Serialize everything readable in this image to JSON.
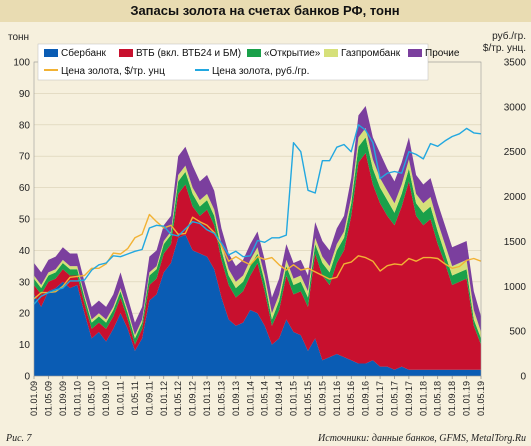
{
  "title": "Запасы золота на счетах банков РФ, тонн",
  "figure_label": "Рис. 7",
  "source": "Источники: данные банков, GFMS, MetalTorg.Ru",
  "colors": {
    "sber": "#0a5cb4",
    "vtb": "#c8102e",
    "otkr": "#1aa04a",
    "gazprom": "#d6e07a",
    "other": "#7b3f9e",
    "usd_line": "#f2b234",
    "rub_line": "#22a8e0",
    "header_band": "#e9dcb2",
    "background": "#f6f0dd"
  },
  "chart_data": {
    "type": "area",
    "title": "Запасы золота на счетах банков РФ, тонн",
    "y_left_label": "тонн",
    "y_right_label_line1": "руб./гр.",
    "y_right_label_line2": "$/тр. унц.",
    "ylim_left": [
      0,
      100
    ],
    "ylim_right": [
      0,
      3500
    ],
    "y_left_ticks": [
      0,
      10,
      20,
      30,
      40,
      50,
      60,
      70,
      80,
      90,
      100
    ],
    "y_right_ticks": [
      0,
      500,
      1000,
      1500,
      2000,
      2500,
      3000,
      3500
    ],
    "x_tick_labels": [
      "01.01.09",
      "01.05.09",
      "01.09.09",
      "01.01.10",
      "01.05.10",
      "01.09.10",
      "01.01.11",
      "01.05.11",
      "01.09.11",
      "01.01.12",
      "01.05.12",
      "01.09.12",
      "01.01.13",
      "01.05.13",
      "01.09.13",
      "01.01.14",
      "01.05.14",
      "01.09.14",
      "01.01.15",
      "01.05.15",
      "01.09.15",
      "01.01.16",
      "01.05.16",
      "01.09.16",
      "01.01.17",
      "01.05.17",
      "01.09.17",
      "01.01.18",
      "01.05.18",
      "01.09.18",
      "01.01.19",
      "01.05.19"
    ],
    "x": [
      "01.01.09",
      "01.03.09",
      "01.05.09",
      "01.07.09",
      "01.09.09",
      "01.11.09",
      "01.01.10",
      "01.03.10",
      "01.05.10",
      "01.07.10",
      "01.09.10",
      "01.11.10",
      "01.01.11",
      "01.03.11",
      "01.05.11",
      "01.07.11",
      "01.09.11",
      "01.11.11",
      "01.01.12",
      "01.03.12",
      "01.05.12",
      "01.07.12",
      "01.09.12",
      "01.11.12",
      "01.01.13",
      "01.03.13",
      "01.05.13",
      "01.07.13",
      "01.09.13",
      "01.11.13",
      "01.01.14",
      "01.03.14",
      "01.05.14",
      "01.07.14",
      "01.09.14",
      "01.11.14",
      "01.01.15",
      "01.03.15",
      "01.05.15",
      "01.07.15",
      "01.09.15",
      "01.11.15",
      "01.01.16",
      "01.03.16",
      "01.05.16",
      "01.07.16",
      "01.09.16",
      "01.11.16",
      "01.01.17",
      "01.03.17",
      "01.05.17",
      "01.07.17",
      "01.09.17",
      "01.11.17",
      "01.01.18",
      "01.03.18",
      "01.05.18",
      "01.07.18",
      "01.09.18",
      "01.11.18",
      "01.01.19",
      "01.03.19",
      "01.05.19"
    ],
    "grid": true,
    "legend_position": "top",
    "legend_labels": [
      "Сбербанк",
      "ВТБ (вкл. ВТБ24 и БМ)",
      "«Открытие»",
      "Газпромбанк",
      "Прочие",
      "Цена золота, $/тр. унц",
      "Цена золота, руб./гр."
    ],
    "series": [
      {
        "name": "Сбербанк",
        "kind": "area",
        "values": [
          26,
          22,
          27,
          28,
          30,
          28,
          29,
          20,
          12,
          14,
          11,
          15,
          20,
          15,
          8,
          12,
          24,
          26,
          33,
          36,
          44,
          45,
          40,
          39,
          38,
          34,
          25,
          18,
          16,
          17,
          21,
          20,
          16,
          10,
          12,
          18,
          14,
          13,
          8,
          12,
          5,
          6,
          7,
          6,
          5,
          4,
          4,
          5,
          3,
          3,
          2,
          3,
          2,
          2,
          2,
          2,
          2,
          2,
          2,
          2,
          2,
          2,
          2
        ]
      },
      {
        "name": "ВТБ (вкл. ВТБ24 и БМ)",
        "kind": "area",
        "values": [
          3,
          4,
          3,
          3,
          4,
          4,
          3,
          3,
          3,
          3,
          4,
          4,
          5,
          3,
          2,
          3,
          5,
          5,
          6,
          6,
          14,
          16,
          14,
          12,
          15,
          14,
          12,
          11,
          9,
          10,
          11,
          16,
          11,
          6,
          9,
          14,
          12,
          14,
          14,
          27,
          27,
          23,
          29,
          34,
          46,
          64,
          67,
          56,
          52,
          48,
          46,
          51,
          60,
          49,
          46,
          48,
          40,
          34,
          27,
          28,
          29,
          14,
          8
        ]
      },
      {
        "name": "«Открытие»",
        "kind": "area",
        "values": [
          2,
          2,
          2,
          2,
          2,
          2,
          2,
          2,
          2,
          2,
          2,
          2,
          2,
          2,
          2,
          2,
          3,
          3,
          3,
          3,
          4,
          4,
          4,
          3,
          3,
          3,
          3,
          3,
          3,
          3,
          3,
          3,
          3,
          2,
          3,
          3,
          3,
          3,
          3,
          3,
          4,
          4,
          4,
          4,
          4,
          5,
          5,
          5,
          5,
          5,
          4,
          4,
          4,
          4,
          4,
          4,
          4,
          3,
          3,
          3,
          3,
          2,
          2
        ]
      },
      {
        "name": "Газпромбанк",
        "kind": "area",
        "values": [
          1,
          1,
          1,
          1,
          1,
          1,
          1,
          1,
          1,
          1,
          1,
          1,
          1,
          1,
          1,
          1,
          1,
          1,
          1,
          1,
          2,
          2,
          2,
          2,
          2,
          2,
          2,
          2,
          2,
          2,
          2,
          2,
          2,
          2,
          2,
          2,
          2,
          2,
          2,
          2,
          2,
          2,
          2,
          2,
          2,
          3,
          3,
          3,
          3,
          3,
          3,
          3,
          3,
          3,
          3,
          3,
          3,
          3,
          3,
          3,
          3,
          3,
          2
        ]
      },
      {
        "name": "Прочие",
        "kind": "area",
        "values": [
          4,
          4,
          4,
          4,
          4,
          4,
          4,
          4,
          4,
          4,
          4,
          4,
          5,
          4,
          4,
          4,
          5,
          5,
          5,
          5,
          6,
          6,
          7,
          6,
          6,
          6,
          5,
          5,
          5,
          5,
          5,
          5,
          5,
          5,
          5,
          5,
          5,
          5,
          5,
          5,
          5,
          5,
          5,
          5,
          6,
          7,
          7,
          7,
          8,
          7,
          7,
          7,
          7,
          6,
          6,
          6,
          6,
          6,
          6,
          6,
          6,
          6,
          5
        ]
      },
      {
        "name": "Цена золота, $/тр. унц",
        "kind": "line",
        "axis": "right",
        "values": [
          860,
          930,
          930,
          940,
          1000,
          1100,
          1110,
          1120,
          1200,
          1200,
          1250,
          1370,
          1360,
          1420,
          1540,
          1580,
          1800,
          1720,
          1650,
          1680,
          1580,
          1590,
          1770,
          1720,
          1680,
          1600,
          1450,
          1280,
          1330,
          1280,
          1240,
          1330,
          1300,
          1320,
          1240,
          1180,
          1240,
          1180,
          1200,
          1160,
          1120,
          1080,
          1100,
          1250,
          1270,
          1340,
          1320,
          1280,
          1170,
          1230,
          1250,
          1240,
          1310,
          1280,
          1320,
          1320,
          1310,
          1250,
          1200,
          1220,
          1290,
          1310,
          1280
        ]
      },
      {
        "name": "Цена золота, руб./гр.",
        "kind": "line",
        "axis": "right",
        "values": [
          800,
          890,
          930,
          960,
          980,
          1060,
          1060,
          1070,
          1180,
          1240,
          1260,
          1340,
          1330,
          1360,
          1390,
          1410,
          1650,
          1680,
          1670,
          1580,
          1560,
          1640,
          1720,
          1700,
          1630,
          1590,
          1480,
          1350,
          1390,
          1330,
          1340,
          1510,
          1490,
          1540,
          1540,
          1570,
          2600,
          2500,
          2070,
          2040,
          2400,
          2400,
          2550,
          2580,
          2500,
          2800,
          2740,
          2600,
          2200,
          2260,
          2280,
          2260,
          2500,
          2470,
          2420,
          2590,
          2560,
          2620,
          2670,
          2700,
          2760,
          2710,
          2700
        ]
      }
    ]
  }
}
